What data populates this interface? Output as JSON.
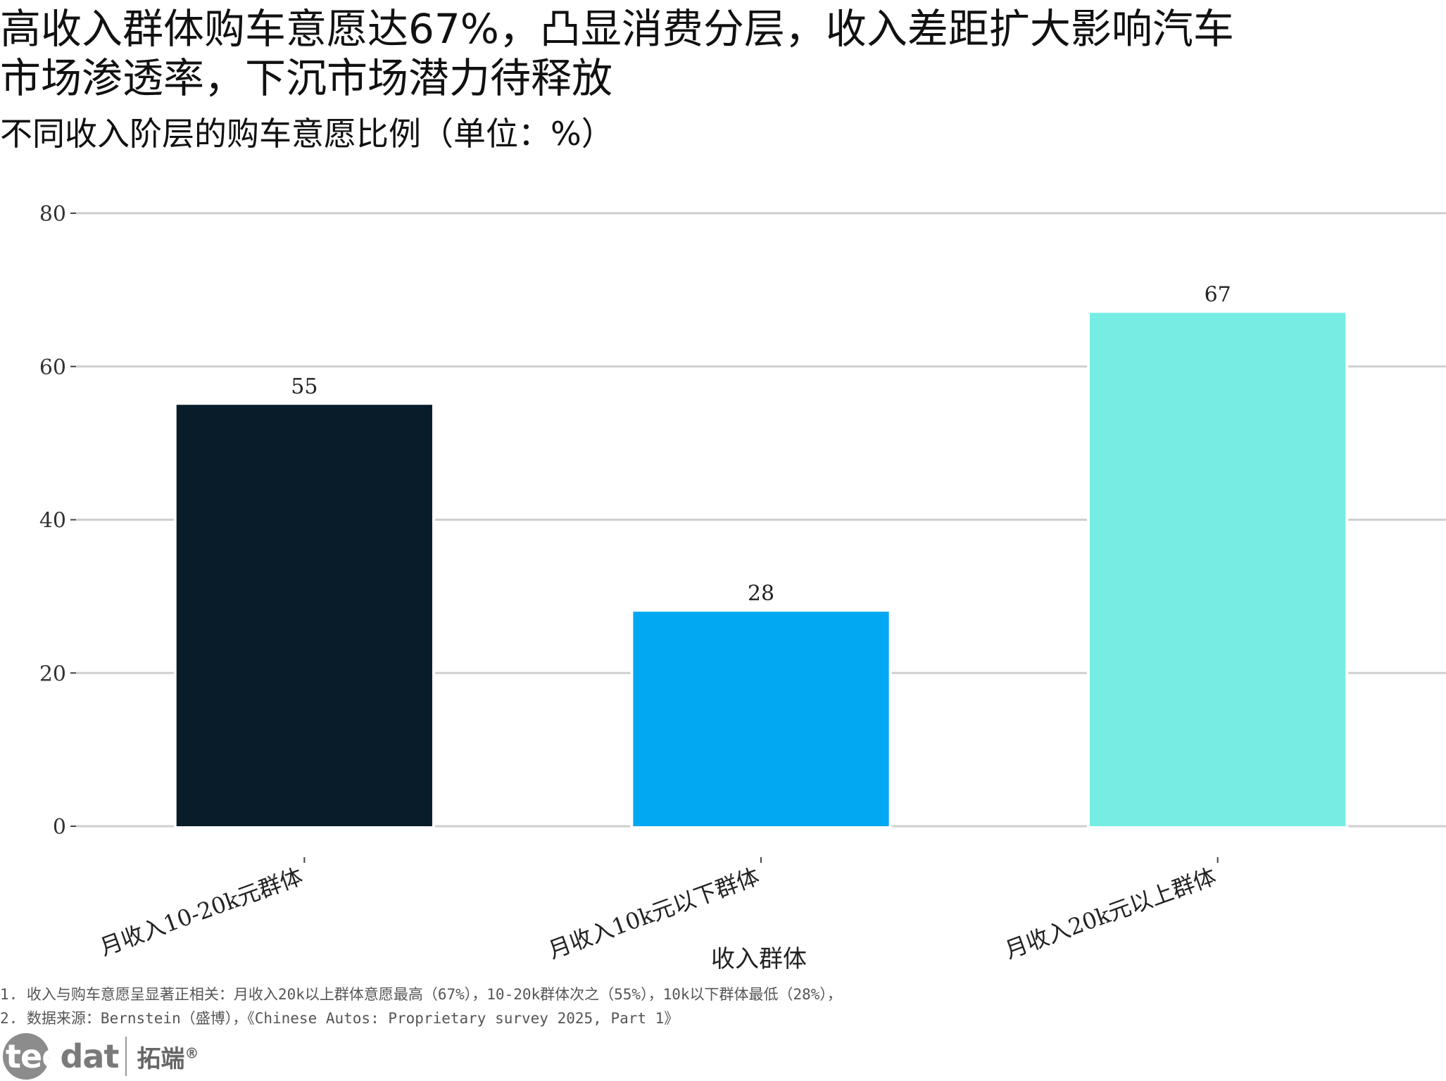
{
  "title": "高收入群体购车意愿达67%，凸显消费分层，收入差距扩大影响汽车市场渗透率，下沉市场潜力待释放",
  "subtitle": "不同收入阶层的购车意愿比例（单位：%）",
  "chart_data": {
    "type": "bar",
    "categories": [
      "月收入10-20k元群体",
      "月收入10k元以下群体",
      "月收入20k元以上群体"
    ],
    "values": [
      55,
      28,
      67
    ],
    "colors": [
      "#081c2a",
      "#02a8f2",
      "#75ede3"
    ],
    "xlabel": "收入群体",
    "ylabel": "",
    "ylim": [
      0,
      80
    ],
    "yticks": [
      0,
      20,
      40,
      60,
      80
    ],
    "grid": true,
    "data_labels": true
  },
  "notes": [
    "1. 收入与购车意愿呈显著正相关：月收入20k以上群体意愿最高（67%），10-20k群体次之（55%），10k以下群体最低（28%），",
    "2. 数据来源：Bernstein（盛博），《Chinese Autos: Proprietary survey 2025, Part 1》"
  ],
  "logo": {
    "brand_first": "tec",
    "brand_rest": "dat",
    "brand_cn": "拓端",
    "reg": "®"
  }
}
